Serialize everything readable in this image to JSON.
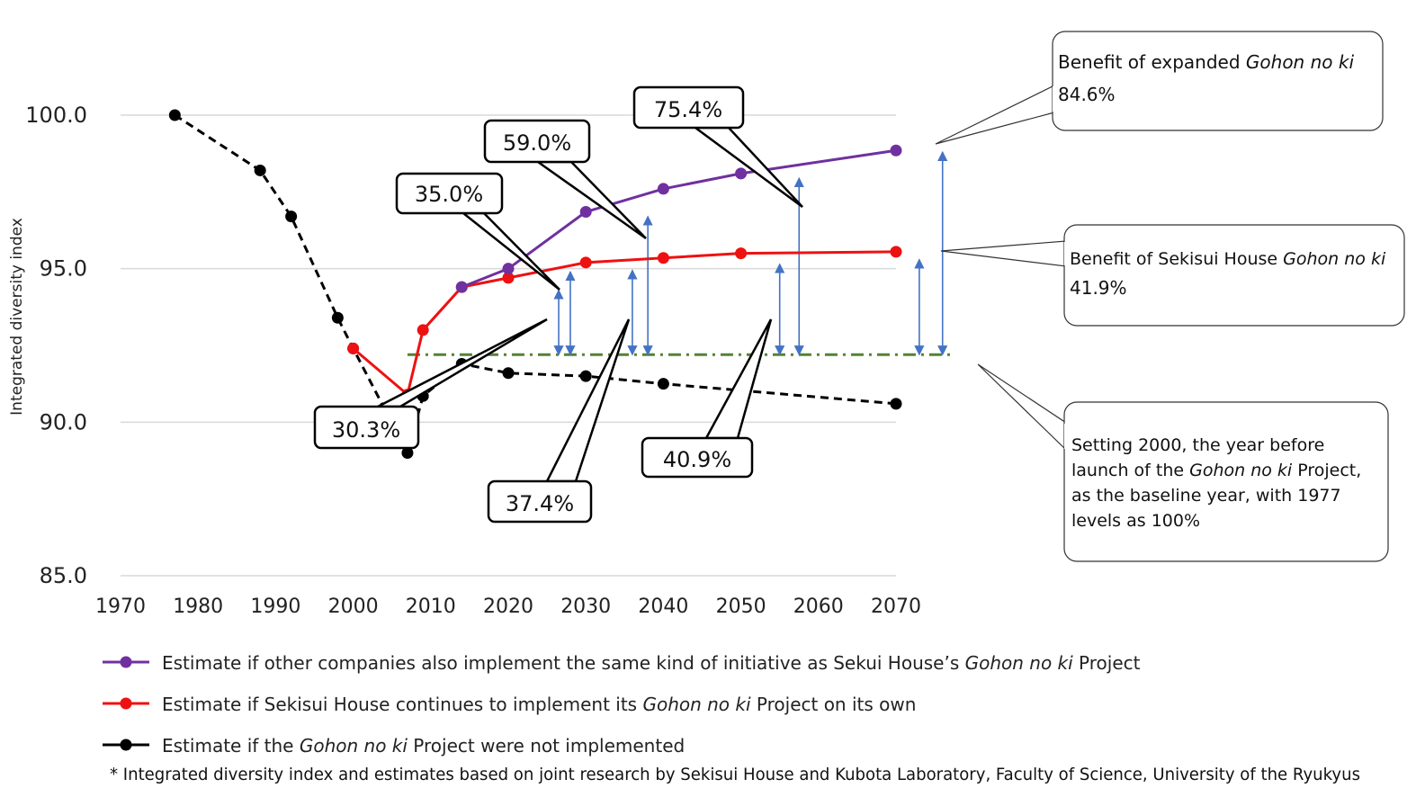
{
  "chart_data": {
    "type": "line",
    "title": "",
    "ylabel": "Integrated diversity index",
    "xlabel": "",
    "xlim": [
      1970,
      2070
    ],
    "ylim": [
      85,
      100
    ],
    "x_ticks": [
      "1970",
      "1980",
      "1990",
      "2000",
      "2010",
      "2020",
      "2030",
      "2040",
      "2050",
      "2060",
      "2070"
    ],
    "y_ticks": [
      "85.0",
      "90.0",
      "95.0",
      "100.0"
    ],
    "grid": "horizontal",
    "series": [
      {
        "key": "purple",
        "color": "#7030a0",
        "dashed": false,
        "points": [
          [
            2014,
            94.4
          ],
          [
            2020,
            95.0
          ],
          [
            2030,
            96.85
          ],
          [
            2040,
            97.6
          ],
          [
            2050,
            98.1
          ],
          [
            2070,
            98.85
          ]
        ]
      },
      {
        "key": "red",
        "color": "#ee1111",
        "dashed": false,
        "points": [
          [
            2000,
            92.4
          ],
          [
            2007,
            90.9
          ],
          [
            2009,
            93.0
          ],
          [
            2014,
            94.4
          ],
          [
            2020,
            94.7
          ],
          [
            2030,
            95.2
          ],
          [
            2040,
            95.35
          ],
          [
            2050,
            95.5
          ],
          [
            2070,
            95.55
          ]
        ]
      },
      {
        "key": "black",
        "color": "#000000",
        "dashed": true,
        "points": [
          [
            1977,
            100.0
          ],
          [
            1988,
            98.2
          ],
          [
            1992,
            96.7
          ],
          [
            1998,
            93.4
          ],
          [
            2000,
            92.4
          ],
          [
            2007,
            89.0
          ],
          [
            2009,
            90.85
          ],
          [
            2014,
            91.9
          ],
          [
            2020,
            91.6
          ],
          [
            2030,
            91.5
          ],
          [
            2040,
            91.25
          ],
          [
            2070,
            90.6
          ]
        ]
      }
    ],
    "baseline": {
      "value": 92.2,
      "from": 2007,
      "to": 2077,
      "color": "#548235"
    },
    "benefit_arrows": [
      {
        "x": 2026.5,
        "to": 94.3
      },
      {
        "x": 2028,
        "to": 94.9
      },
      {
        "x": 2036,
        "to": 94.95
      },
      {
        "x": 2038,
        "to": 96.7
      },
      {
        "x": 2055,
        "to": 95.15
      },
      {
        "x": 2057.5,
        "to": 97.95
      },
      {
        "x": 2073,
        "to": 95.3
      },
      {
        "x": 2076,
        "to": 98.8
      }
    ],
    "percent_labels": [
      "30.3%",
      "35.0%",
      "59.0%",
      "75.4%",
      "37.4%",
      "40.9%"
    ],
    "callouts": {
      "expanded": {
        "line1_prefix": "Benefit of expanded ",
        "line1_italic": "Gohon no ki",
        "line2": "84.6%"
      },
      "sekisui": {
        "line1_prefix": "Benefit of Sekisui House ",
        "line1_italic": "Gohon no ki",
        "line2": "41.9%"
      },
      "baseline_note": {
        "line1": "Setting 2000, the year before",
        "line2_prefix": "launch of the ",
        "line2_italic": "Gohon no ki",
        "line2_suffix": " Project,",
        "line3": "as the baseline year, with 1977",
        "line4": "levels as 100%"
      }
    },
    "legend": [
      {
        "key": "purple",
        "color": "#7030a0",
        "prefix": "Estimate if other companies also implement the same kind of initiative as Sekui House’s ",
        "italic": "Gohon no ki",
        "suffix": " Project"
      },
      {
        "key": "red",
        "color": "#ee1111",
        "prefix": "Estimate if Sekisui House continues to implement its ",
        "italic": "Gohon no ki",
        "suffix": " Project on its own"
      },
      {
        "key": "black",
        "color": "#000000",
        "prefix": "Estimate if the ",
        "italic": "Gohon no ki",
        "suffix": " Project were not implemented"
      }
    ],
    "footnote": "* Integrated diversity index and estimates based on joint research by Sekisui House and Kubota Laboratory, Faculty of Science, University of the Ryukyus"
  }
}
